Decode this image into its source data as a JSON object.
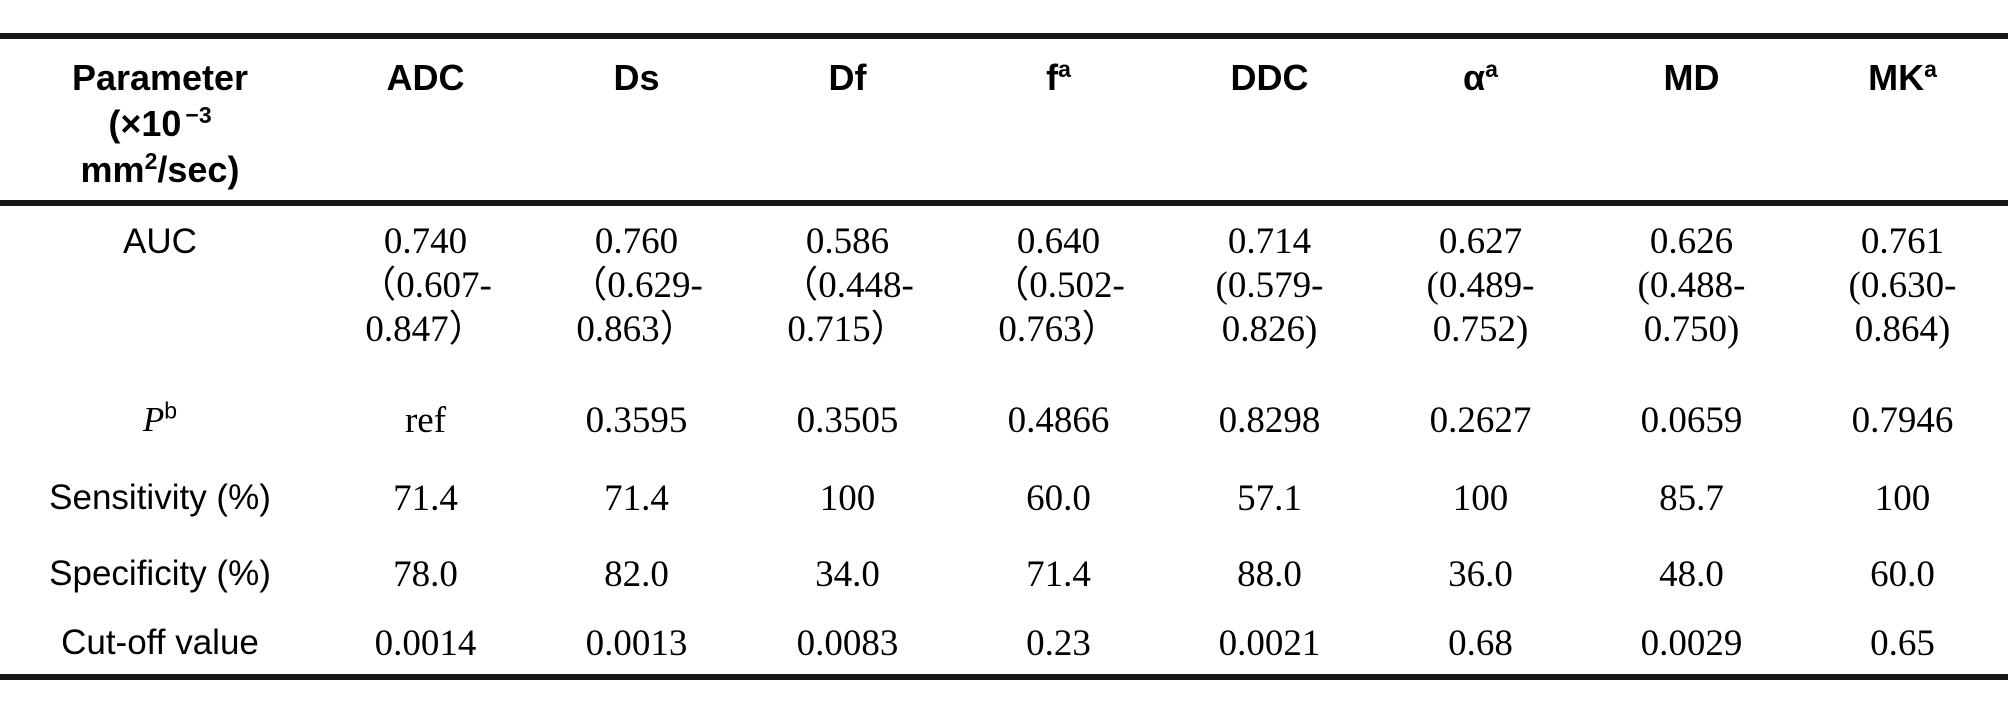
{
  "table": {
    "param_header": {
      "line1": "Parameter",
      "line2_base": "(×10",
      "line2_sup": "−3",
      "line3_base": "mm",
      "line3_sup": "2",
      "line3_rest": "/sec)"
    },
    "columns": [
      {
        "base": "ADC",
        "sup": ""
      },
      {
        "base": "Ds",
        "sup": ""
      },
      {
        "base": "Df",
        "sup": ""
      },
      {
        "base": "f",
        "sup": "a"
      },
      {
        "base": "DDC",
        "sup": ""
      },
      {
        "base": "α",
        "sup": "a"
      },
      {
        "base": "MD",
        "sup": ""
      },
      {
        "base": "MK",
        "sup": "a"
      }
    ],
    "rows": [
      {
        "name": "auc",
        "label": "AUC",
        "label_italic": false,
        "cells": [
          [
            "0.740",
            "（0.607-",
            "0.847）"
          ],
          [
            "0.760",
            "（0.629-",
            "0.863）"
          ],
          [
            "0.586",
            "（0.448-",
            "0.715）"
          ],
          [
            "0.640",
            "（0.502-",
            "0.763）"
          ],
          [
            "0.714",
            "(0.579-",
            "0.826)"
          ],
          [
            "0.627",
            "(0.489-",
            "0.752)"
          ],
          [
            "0.626",
            "(0.488-",
            "0.750)"
          ],
          [
            "0.761",
            "(0.630-",
            "0.864)"
          ]
        ]
      },
      {
        "name": "p-value",
        "label": "P",
        "label_sup": "b",
        "label_italic": true,
        "cells": [
          "ref",
          "0.3595",
          "0.3505",
          "0.4866",
          "0.8298",
          "0.2627",
          "0.0659",
          "0.7946"
        ]
      },
      {
        "name": "sensitivity",
        "label": "Sensitivity (%)",
        "label_italic": false,
        "cells": [
          "71.4",
          "71.4",
          "100",
          "60.0",
          "57.1",
          "100",
          "85.7",
          "100"
        ]
      },
      {
        "name": "specificity",
        "label": "Specificity (%)",
        "label_italic": false,
        "cells": [
          "78.0",
          "82.0",
          "34.0",
          "71.4",
          "88.0",
          "36.0",
          "48.0",
          "60.0"
        ]
      },
      {
        "name": "cutoff",
        "label": "Cut-off value",
        "label_italic": false,
        "cells": [
          "0.0014",
          "0.0013",
          "0.0083",
          "0.23",
          "0.0021",
          "0.68",
          "0.0029",
          "0.65"
        ]
      }
    ]
  }
}
